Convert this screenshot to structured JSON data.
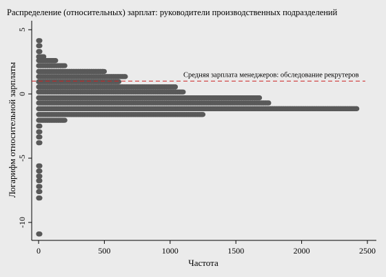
{
  "chart_data": {
    "type": "scatter",
    "title": "Распределение (относительных) зарплат: руководители производственных подразделений",
    "xlabel": "Частота",
    "ylabel": "Логарифм относительной зарплаты",
    "xlim": [
      -20,
      2560
    ],
    "ylim": [
      -11.2,
      5.4
    ],
    "xticks": [
      0,
      500,
      1000,
      1500,
      2000,
      2500
    ],
    "yticks": [
      5,
      0,
      -5,
      -10
    ],
    "grid": false,
    "marker_color": "#595959",
    "reference_line": {
      "y": 1.0,
      "label": "Средняя зарплата менеджеров: обследование рекрутеров",
      "color": "#cc2222",
      "style": "dashed"
    },
    "bins": [
      {
        "y": 4.15,
        "count": 10
      },
      {
        "y": 3.75,
        "count": 10
      },
      {
        "y": 3.3,
        "count": 10
      },
      {
        "y": 2.9,
        "count": 40
      },
      {
        "y": 2.6,
        "count": 130
      },
      {
        "y": 2.2,
        "count": 200
      },
      {
        "y": 1.75,
        "count": 500
      },
      {
        "y": 1.35,
        "count": 660
      },
      {
        "y": 0.95,
        "count": 610
      },
      {
        "y": 0.55,
        "count": 1040
      },
      {
        "y": 0.15,
        "count": 1100
      },
      {
        "y": -0.3,
        "count": 1680
      },
      {
        "y": -0.7,
        "count": 1750
      },
      {
        "y": -1.15,
        "count": 2420
      },
      {
        "y": -1.6,
        "count": 1250
      },
      {
        "y": -2.05,
        "count": 200
      },
      {
        "y": -2.5,
        "count": 10
      },
      {
        "y": -2.95,
        "count": 10
      },
      {
        "y": -3.35,
        "count": 10
      },
      {
        "y": -3.8,
        "count": 10
      },
      {
        "y": -5.6,
        "count": 10
      },
      {
        "y": -6.0,
        "count": 10
      },
      {
        "y": -6.4,
        "count": 10
      },
      {
        "y": -6.75,
        "count": 10
      },
      {
        "y": -7.2,
        "count": 10
      },
      {
        "y": -7.6,
        "count": 10
      },
      {
        "y": -8.1,
        "count": 10
      },
      {
        "y": -10.9,
        "count": 10
      }
    ]
  }
}
